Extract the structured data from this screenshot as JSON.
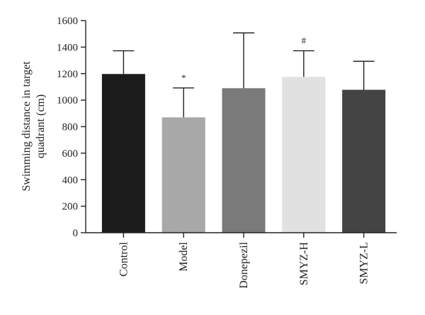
{
  "chart_data": {
    "type": "bar",
    "title": "",
    "xlabel": "",
    "ylabel_lines": [
      "Swimming distance in target",
      "quadrant (cm)"
    ],
    "ylim": [
      0,
      1600
    ],
    "yticks": [
      0,
      200,
      400,
      600,
      800,
      1000,
      1200,
      1400,
      1600
    ],
    "grid": false,
    "legend": "none",
    "categories": [
      "Control",
      "Model",
      "Donepezil",
      "SMYZ-H",
      "SMYZ-L"
    ],
    "values": [
      1197,
      870,
      1090,
      1175,
      1078
    ],
    "errors": [
      175,
      222,
      417,
      197,
      215
    ],
    "annotations": [
      "",
      "*",
      "",
      "#",
      ""
    ],
    "colors": [
      "#1c1c1c",
      "#a8a8a8",
      "#7a7a7a",
      "#e1e1e1",
      "#444444"
    ]
  }
}
